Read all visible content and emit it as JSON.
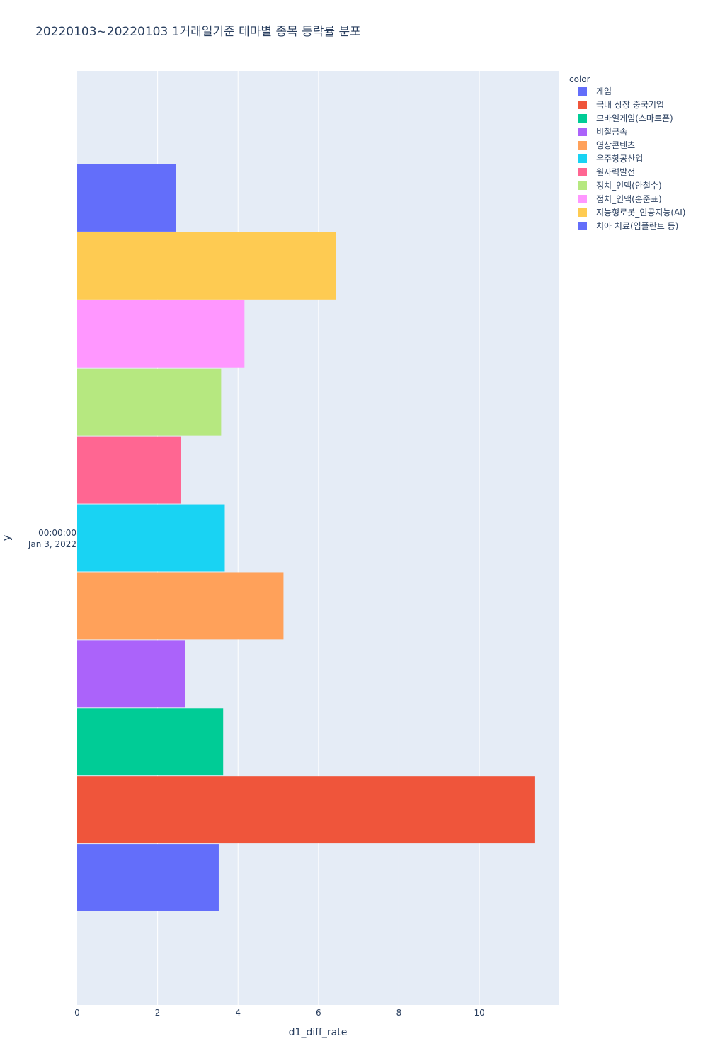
{
  "chart_data": {
    "type": "bar",
    "orientation": "horizontal",
    "barmode": "group",
    "title": "20220103~20220103 1거래일기준 테마별 종목 등락률 분포",
    "xlabel": "d1_diff_rate",
    "ylabel": "y",
    "xlim": [
      0,
      11.97
    ],
    "x_ticks": [
      "0",
      "2",
      "4",
      "6",
      "8",
      "10"
    ],
    "y_tick_line1": "00:00:00",
    "y_tick_line2": "Jan 3, 2022",
    "grid": true,
    "legend_title": "color",
    "legend_position": "top-right",
    "series": [
      {
        "name": "게임",
        "value": 3.52,
        "color": "#636efa"
      },
      {
        "name": "국내 상장 중국기업",
        "value": 11.37,
        "color": "#EF553B"
      },
      {
        "name": "모바일게임(스마트폰)",
        "value": 3.63,
        "color": "#00cc96"
      },
      {
        "name": "비철금속",
        "value": 2.68,
        "color": "#ab63fa"
      },
      {
        "name": "영상콘텐츠",
        "value": 5.13,
        "color": "#FFA15A"
      },
      {
        "name": "우주항공산업",
        "value": 3.67,
        "color": "#19d3f3"
      },
      {
        "name": "원자력발전",
        "value": 2.58,
        "color": "#FF6692"
      },
      {
        "name": "정치_인맥(안철수)",
        "value": 3.58,
        "color": "#B6E880"
      },
      {
        "name": "정치_인맥(홍준표)",
        "value": 4.16,
        "color": "#FF97FF"
      },
      {
        "name": "지능형로봇_인공지능(AI)",
        "value": 6.44,
        "color": "#FECB52"
      },
      {
        "name": "치아 치료(임플란트 등)",
        "value": 2.46,
        "color": "#636efa"
      }
    ]
  }
}
